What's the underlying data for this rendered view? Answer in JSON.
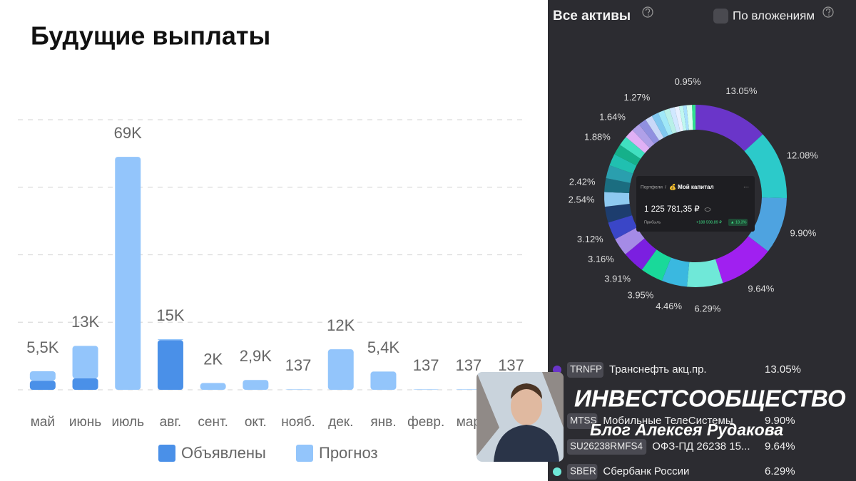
{
  "chart_data": [
    {
      "type": "bar",
      "title": "Будущие выплаты",
      "categories": [
        "май",
        "июнь",
        "июль",
        "авг.",
        "сент.",
        "окт.",
        "нояб.",
        "дек.",
        "янв.",
        "февр.",
        "мар",
        null
      ],
      "series": [
        {
          "name": "Объявлены",
          "color": "#4a90e8",
          "values": [
            2700,
            3400,
            0,
            14700,
            0,
            0,
            0,
            0,
            0,
            0,
            0,
            0
          ]
        },
        {
          "name": "Прогноз",
          "color": "#93c5fb",
          "values": [
            2800,
            9600,
            69000,
            300,
            2000,
            2900,
            137,
            12000,
            5400,
            137,
            137,
            137
          ]
        }
      ],
      "totals": [
        5500,
        13000,
        69000,
        15000,
        2000,
        2900,
        137,
        12000,
        5400,
        137,
        137,
        137
      ],
      "total_labels": [
        "5,5K",
        "13K",
        "69K",
        "15K",
        "2K",
        "2,9K",
        "137",
        "12K",
        "5,4K",
        "137",
        "137",
        "137"
      ],
      "stacked": true,
      "ylim": [
        0,
        80000
      ],
      "yticks": [
        0,
        20000,
        40000,
        60000,
        80000
      ],
      "grid": true,
      "legend": "bottom"
    },
    {
      "type": "pie",
      "donut": true,
      "values": [
        13.05,
        12.08,
        9.9,
        9.64,
        6.29,
        4.46,
        3.95,
        3.91,
        3.16,
        3.12,
        2.8,
        2.54,
        2.42,
        2.3,
        2.1,
        1.88,
        1.7,
        1.64,
        1.5,
        1.4,
        1.27,
        1.2,
        1.1,
        1.0,
        0.9,
        0.8,
        0.7,
        0.6,
        0.95,
        0.6
      ],
      "value_labels": [
        "13.05%",
        "12.08%",
        "9.90%",
        "9.64%",
        "6.29%",
        "4.46%",
        "3.95%",
        "3.91%",
        "3.16%",
        "3.12%",
        null,
        "2.54%",
        "2.42%",
        null,
        null,
        "1.88%",
        null,
        "1.64%",
        null,
        null,
        "1.27%",
        null,
        null,
        null,
        null,
        null,
        null,
        null,
        "0.95%",
        null
      ],
      "colors": [
        "#6a35c9",
        "#2ccaca",
        "#4ea3e0",
        "#a020f0",
        "#6fe8d8",
        "#3ab8e0",
        "#19d99a",
        "#7b1fe0",
        "#a58be6",
        "#3a46c7",
        "#1d3d6e",
        "#8ec9f0",
        "#1b6d80",
        "#2a9fae",
        "#20c0b0",
        "#15b08a",
        "#40e0c0",
        "#e0b0f5",
        "#b0a0e8",
        "#9090e0",
        "#c8d8f8",
        "#80c8f0",
        "#a0e8f8",
        "#b8f0e8",
        "#d0e8ff",
        "#e8f0ff",
        "#c0f8f0",
        "#a8e0ff",
        "#d8fff0",
        "#30e090"
      ]
    }
  ],
  "panel": {
    "title": "Все активы",
    "toggle": "По вложениям",
    "card": {
      "breadcrumb": "Портфели",
      "separator": "/",
      "portfolio": "💰 Мой капитал",
      "menu": "···",
      "amount": "1 225 781,35 ₽",
      "profit_label": "Прибыль",
      "profit": "+188 598,89 ₽",
      "profit_pct": "▲ 18,3%"
    },
    "rows": [
      {
        "ticker": "TRNFP",
        "name": "Транснефть акц.пр.",
        "share": "13.05%",
        "color": "#6a35c9"
      },
      {
        "ticker": "MTSS",
        "name": "Мобильные ТелеСистемы",
        "share": "9.90%",
        "color": "#4ea3e0"
      },
      {
        "ticker": "SU26238RMFS4",
        "name": "ОФЗ-ПД 26238 15...",
        "share": "9.64%",
        "color": "#a020f0"
      },
      {
        "ticker": "SBER",
        "name": "Сбербанк России",
        "share": "6.29%",
        "color": "#6fe8d8"
      }
    ]
  },
  "overlay": {
    "title": "ИНВЕСТСООБЩЕСТВО",
    "subtitle": "Блог Алексея Рудакова"
  }
}
